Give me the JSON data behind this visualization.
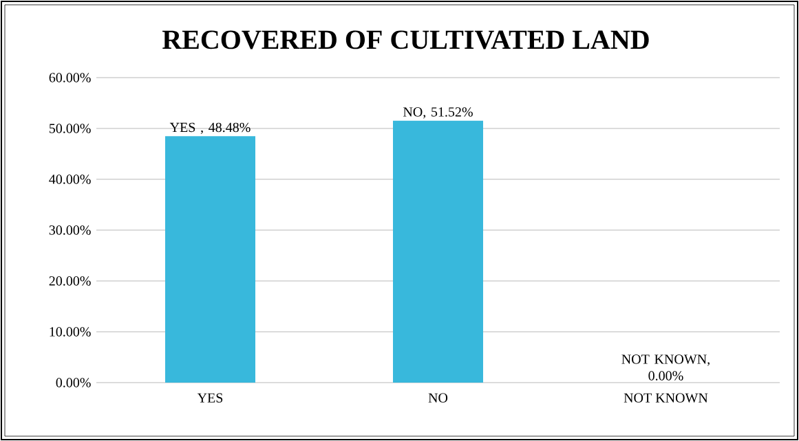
{
  "chart_data": {
    "type": "bar",
    "title": "RECOVERED OF CULTIVATED  LAND",
    "categories": [
      "YES",
      "NO",
      "NOT KNOWN"
    ],
    "values": [
      48.48,
      51.52,
      0.0
    ],
    "value_labels": [
      "YES , 48.48%",
      "NO, 51.52%",
      "NOT KNOWN, 0.00%"
    ],
    "color": "#38b8dc",
    "ylim": [
      0,
      60
    ],
    "yticks": [
      {
        "value": 0,
        "label": "0.00%"
      },
      {
        "value": 10,
        "label": "10.00%"
      },
      {
        "value": 20,
        "label": "20.00%"
      },
      {
        "value": 30,
        "label": "30.00%"
      },
      {
        "value": 40,
        "label": "40.00%"
      },
      {
        "value": 50,
        "label": "50.00%"
      },
      {
        "value": 60,
        "label": "60.00%"
      }
    ],
    "grid": "y"
  }
}
